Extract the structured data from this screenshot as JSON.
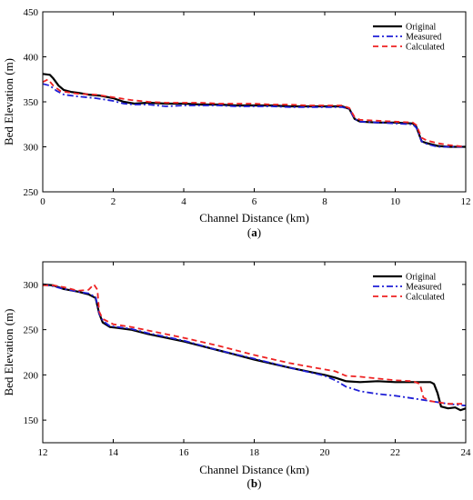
{
  "chart_data": [
    {
      "type": "line",
      "panel_label": "(a)",
      "xlabel": "Channel Distance (km)",
      "ylabel": "Bed Elevation (m)",
      "xlim": [
        0,
        12
      ],
      "ylim": [
        250,
        450
      ],
      "xticks": [
        0,
        2,
        4,
        6,
        8,
        10,
        12
      ],
      "yticks": [
        250,
        300,
        350,
        400,
        450
      ],
      "grid": false,
      "legend_position": "top-right",
      "series": [
        {
          "name": "Original",
          "color": "#000000",
          "style": "solid",
          "x": [
            0,
            0.2,
            0.3,
            0.45,
            0.6,
            0.8,
            1.0,
            1.3,
            1.6,
            2.0,
            2.3,
            2.6,
            3.0,
            3.5,
            4.0,
            4.5,
            5.0,
            5.5,
            6.0,
            6.5,
            7.0,
            7.5,
            8.0,
            8.5,
            8.7,
            8.85,
            9.0,
            9.5,
            10.0,
            10.5,
            10.6,
            10.75,
            10.9,
            11.2,
            11.5,
            12.0
          ],
          "y": [
            381,
            380,
            376,
            368,
            363,
            361,
            360,
            358,
            357,
            354,
            350,
            348,
            349,
            348,
            348,
            347,
            347,
            346,
            346,
            346,
            345,
            345,
            345,
            345,
            342,
            331,
            328,
            327,
            327,
            326,
            322,
            306,
            304,
            301,
            300,
            300
          ]
        },
        {
          "name": "Measured",
          "color": "#1f1fd6",
          "style": "dashdot",
          "x": [
            0,
            0.2,
            0.4,
            0.6,
            0.8,
            1.0,
            1.5,
            2.0,
            2.3,
            2.6,
            3.0,
            3.5,
            4.0,
            4.5,
            5.0,
            5.5,
            6.0,
            6.5,
            7.0,
            7.5,
            8.0,
            8.5,
            8.7,
            8.85,
            9.0,
            9.5,
            10.0,
            10.5,
            10.6,
            10.75,
            10.9,
            11.2,
            11.5,
            12.0
          ],
          "y": [
            370,
            368,
            362,
            358,
            357,
            356,
            354,
            351,
            348,
            347,
            347,
            345,
            346,
            346,
            346,
            345,
            345,
            345,
            344,
            344,
            344,
            344,
            342,
            331,
            328,
            327,
            326,
            325,
            321,
            306,
            303,
            300,
            300,
            300
          ]
        },
        {
          "name": "Calculated",
          "color": "#ee2222",
          "style": "dashed",
          "x": [
            0,
            0.15,
            0.3,
            0.5,
            0.8,
            1.0,
            1.5,
            2.0,
            2.5,
            3.0,
            3.5,
            4.0,
            4.5,
            5.0,
            5.5,
            6.0,
            6.5,
            7.0,
            7.5,
            8.0,
            8.5,
            8.7,
            8.85,
            9.0,
            9.5,
            10.0,
            10.5,
            10.6,
            10.75,
            10.9,
            11.2,
            11.5,
            12.0
          ],
          "y": [
            372,
            375,
            368,
            362,
            360,
            359,
            358,
            355,
            352,
            350,
            349,
            349,
            349,
            348,
            348,
            348,
            347,
            347,
            346,
            346,
            346,
            343,
            333,
            330,
            329,
            328,
            327,
            324,
            310,
            307,
            304,
            302,
            300
          ]
        }
      ]
    },
    {
      "type": "line",
      "panel_label": "(b)",
      "xlabel": "Channel Distance (km)",
      "ylabel": "Bed Elevation (m)",
      "xlim": [
        12,
        24
      ],
      "ylim": [
        125,
        325
      ],
      "xticks": [
        12,
        14,
        16,
        18,
        20,
        22,
        24
      ],
      "yticks": [
        150,
        200,
        250,
        300
      ],
      "grid": false,
      "legend_position": "top-right",
      "series": [
        {
          "name": "Original",
          "color": "#000000",
          "style": "solid",
          "x": [
            12,
            12.3,
            12.6,
            13.0,
            13.3,
            13.5,
            13.6,
            13.7,
            13.9,
            14.5,
            15.0,
            16.0,
            17.0,
            18.0,
            19.0,
            20.0,
            20.3,
            20.6,
            21.0,
            21.5,
            22.0,
            22.5,
            23.0,
            23.1,
            23.2,
            23.3,
            23.5,
            23.7,
            23.85,
            24.0
          ],
          "y": [
            300,
            299,
            295,
            292,
            289,
            285,
            268,
            258,
            253,
            250,
            245,
            237,
            227,
            217,
            208,
            200,
            197,
            193,
            192,
            193,
            192,
            192,
            192,
            190,
            180,
            165,
            163,
            164,
            161,
            163
          ]
        },
        {
          "name": "Measured",
          "color": "#1f1fd6",
          "style": "dashdot",
          "x": [
            12,
            12.3,
            12.6,
            13.0,
            13.3,
            13.5,
            13.6,
            13.7,
            13.9,
            14.5,
            15.0,
            16.0,
            17.0,
            18.0,
            19.0,
            20.0,
            20.3,
            20.6,
            21.0,
            21.5,
            22.0,
            22.5,
            23.0,
            23.5,
            24.0
          ],
          "y": [
            300,
            298,
            295,
            292,
            290,
            286,
            268,
            260,
            254,
            251,
            246,
            238,
            227,
            218,
            208,
            199,
            194,
            187,
            182,
            179,
            177,
            174,
            171,
            168,
            166
          ]
        },
        {
          "name": "Calculated",
          "color": "#ee2222",
          "style": "dashed",
          "x": [
            12,
            12.3,
            12.6,
            13.0,
            13.3,
            13.45,
            13.55,
            13.6,
            13.7,
            14.0,
            14.5,
            15.0,
            16.0,
            17.0,
            18.0,
            19.0,
            20.0,
            20.3,
            20.6,
            21.0,
            21.5,
            22.0,
            22.5,
            22.7,
            22.8,
            23.0,
            23.5,
            24.0
          ],
          "y": [
            299,
            299,
            297,
            293,
            294,
            300,
            294,
            270,
            262,
            256,
            253,
            249,
            241,
            232,
            222,
            213,
            206,
            204,
            199,
            198,
            196,
            194,
            193,
            190,
            175,
            171,
            168,
            168
          ]
        }
      ]
    }
  ]
}
